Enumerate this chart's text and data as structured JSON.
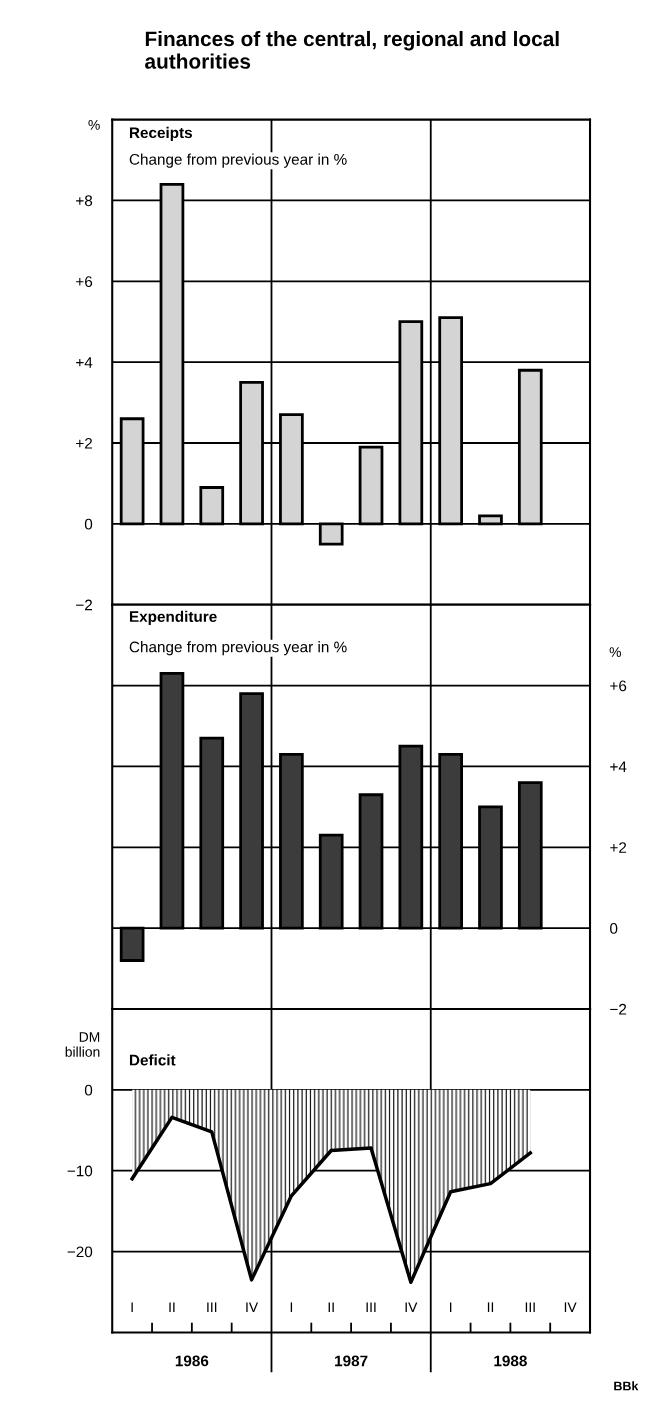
{
  "chart_data": [
    {
      "type": "bar",
      "title": "Receipts",
      "subtitle": "Change from previous year in %",
      "ylabel": "%",
      "annotations": [
        "Finances of the central, regional and local authorities"
      ],
      "categories": [
        null,
        null,
        null,
        null,
        null,
        null,
        null,
        null,
        null,
        null,
        null,
        null
      ],
      "values": [
        2.6,
        8.4,
        0.9,
        3.5,
        2.7,
        -0.5,
        1.9,
        5.0,
        5.1,
        0.2,
        3.8,
        null
      ],
      "color": "#d4d4d4",
      "ylim": [
        -2,
        10
      ],
      "yticks": [
        {
          "value": -2,
          "label": "−2"
        },
        0,
        {
          "value": 2,
          "label": "+2"
        },
        {
          "value": 4,
          "label": "+4"
        },
        {
          "value": 6,
          "label": "+6"
        },
        {
          "value": 8,
          "label": "+8"
        }
      ],
      "grid": "y",
      "tick_labels": "y"
    },
    {
      "type": "bar",
      "title": "Expenditure",
      "subtitle": "Change from previous year in %",
      "y2label": "%",
      "categories": [
        null,
        null,
        null,
        null,
        null,
        null,
        null,
        null,
        null,
        null,
        null,
        null
      ],
      "series": [
        {
          "values": [
            -0.8,
            6.3,
            4.7,
            5.8,
            4.3,
            2.3,
            3.3,
            4.5,
            4.3,
            3.0,
            3.6,
            null
          ],
          "color": "#3c3c3c",
          "axis": "y2"
        }
      ],
      "y2lim": [
        -2,
        8
      ],
      "y2ticks": [
        {
          "value": -2,
          "label": "−2"
        },
        0,
        {
          "value": 2,
          "label": "+2"
        },
        {
          "value": 4,
          "label": "+4"
        },
        {
          "value": 6,
          "label": "+6"
        }
      ],
      "grid": "y",
      "tick_labels": "y"
    },
    {
      "type": "area",
      "title": "Deficit",
      "ylabel": "DM\nbillion",
      "annotations": [
        "1986",
        "1987",
        "1988",
        "BBk"
      ],
      "categories": [
        "I",
        "II",
        "III",
        "IV",
        "I",
        "II",
        "III",
        "IV",
        "I",
        "II",
        "III",
        "IV"
      ],
      "series": [
        {
          "values": [
            -11.0,
            -3.4,
            -5.2,
            -23.5,
            -13.1,
            -7.5,
            -7.2,
            -23.8,
            -12.6,
            -11.6,
            -7.8,
            null
          ],
          "color": "#000000"
        }
      ],
      "ylim": [
        -30,
        10
      ],
      "yticks": [
        {
          "value": -20,
          "label": "−20"
        },
        {
          "value": -10,
          "label": "−10"
        },
        0
      ],
      "grid": "y"
    }
  ]
}
